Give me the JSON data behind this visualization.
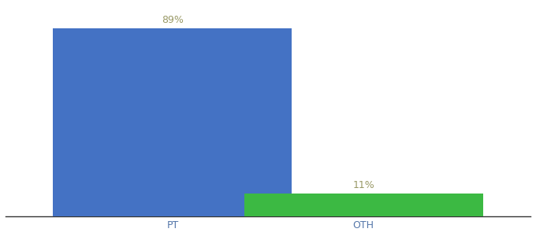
{
  "categories": [
    "PT",
    "OTH"
  ],
  "values": [
    89,
    11
  ],
  "bar_colors": [
    "#4472c4",
    "#3cb943"
  ],
  "label_texts": [
    "89%",
    "11%"
  ],
  "background_color": "#ffffff",
  "ylim": [
    0,
    100
  ],
  "bar_width": 0.5,
  "figsize": [
    6.8,
    3.0
  ],
  "dpi": 100,
  "label_fontsize": 9,
  "tick_fontsize": 9,
  "label_color": "#999966",
  "tick_color": "#5577aa",
  "x_positions": [
    0.35,
    0.75
  ],
  "xlim": [
    0.0,
    1.1
  ]
}
